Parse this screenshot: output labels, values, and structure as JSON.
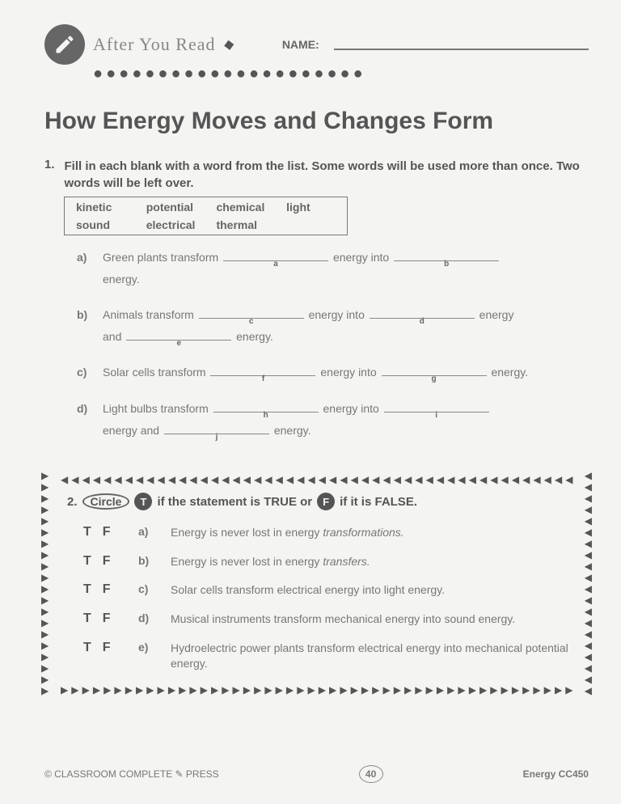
{
  "header": {
    "after_read": "After You Read",
    "name_label": "NAME:"
  },
  "title": "How Energy Moves and Changes Form",
  "q1": {
    "num": "1.",
    "instruction": "Fill in each blank with a word from the list. Some words will be used more than once. Two words will be left over.",
    "words_row1": [
      "kinetic",
      "potential",
      "chemical",
      "light"
    ],
    "words_row2": [
      "sound",
      "electrical",
      "thermal",
      ""
    ],
    "items": [
      {
        "label": "a)",
        "pre1": "Green plants transform",
        "tag1": "a",
        "mid1": "energy into",
        "tag2": "b",
        "post": "energy."
      },
      {
        "label": "b)",
        "pre1": "Animals transform",
        "tag1": "c",
        "mid1": "energy into",
        "tag2": "d",
        "mid2": "energy",
        "cont": "and",
        "tag3": "e",
        "post": "energy."
      },
      {
        "label": "c)",
        "pre1": "Solar cells transform",
        "tag1": "f",
        "mid1": "energy into",
        "tag2": "g",
        "post": "energy."
      },
      {
        "label": "d)",
        "pre1": "Light bulbs transform",
        "tag1": "h",
        "mid1": "energy into",
        "tag2": "i",
        "cont": "energy and",
        "tag3": "j",
        "post": "energy."
      }
    ]
  },
  "q2": {
    "num": "2.",
    "circle_word": "Circle",
    "t_label": "T",
    "mid1": "if the statement is TRUE or",
    "f_label": "F",
    "mid2": "if it is FALSE.",
    "items": [
      {
        "label": "a)",
        "text": "Energy is never lost in energy ",
        "em": "transformations."
      },
      {
        "label": "b)",
        "text": "Energy is never lost in energy ",
        "em": "transfers."
      },
      {
        "label": "c)",
        "text": "Solar cells transform electrical energy into light energy.",
        "em": ""
      },
      {
        "label": "d)",
        "text": "Musical instruments transform mechanical energy into sound energy.",
        "em": ""
      },
      {
        "label": "e)",
        "text": "Hydroelectric power plants transform electrical energy into mechanical potential energy.",
        "em": ""
      }
    ]
  },
  "footer": {
    "publisher": "© CLASSROOM COMPLETE ✎ PRESS",
    "page": "40",
    "code": "Energy  CC450"
  }
}
